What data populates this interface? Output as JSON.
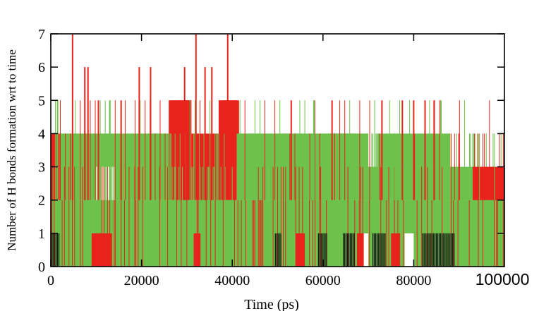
{
  "chart_data": {
    "type": "bar",
    "title": "",
    "xlabel": "Time (ps)",
    "ylabel": "Number of H bonds formation wrt to time",
    "xlim": [
      0,
      100000
    ],
    "ylim": [
      0,
      7
    ],
    "x_ticks": [
      "0",
      "20000",
      "40000",
      "60000",
      "80000"
    ],
    "x_tick_last": "100000",
    "y_ticks": [
      "0",
      "1",
      "2",
      "3",
      "4",
      "5",
      "6",
      "7"
    ],
    "grid": false,
    "legend": "none",
    "colors": {
      "red": "#e8231c",
      "green": "#6cc24a",
      "black": "#111111",
      "white": "#ffffff"
    },
    "segments": [
      {
        "x0": 0,
        "x1": 2000,
        "dominant": "red",
        "base": 3
      },
      {
        "x0": 2000,
        "x1": 10000,
        "dominant": "green",
        "base": 3
      },
      {
        "x0": 10000,
        "x1": 14000,
        "dominant": "red",
        "base": 0
      },
      {
        "x0": 14000,
        "x1": 26000,
        "dominant": "green",
        "base": 3
      },
      {
        "x0": 26000,
        "x1": 31000,
        "dominant": "red",
        "base": 4
      },
      {
        "x0": 31000,
        "x1": 37000,
        "dominant": "red",
        "base": 3
      },
      {
        "x0": 37000,
        "x1": 41000,
        "dominant": "red",
        "base": 4
      },
      {
        "x0": 41000,
        "x1": 48000,
        "dominant": "green",
        "base": 3
      },
      {
        "x0": 48000,
        "x1": 70000,
        "dominant": "green",
        "base": 3
      },
      {
        "x0": 70000,
        "x1": 88000,
        "dominant": "green",
        "base": 2
      },
      {
        "x0": 88000,
        "x1": 93000,
        "dominant": "green",
        "base": 2
      },
      {
        "x0": 93000,
        "x1": 100000,
        "dominant": "red",
        "base": 2
      }
    ],
    "spikes": [
      {
        "x": 4800,
        "y": 7,
        "color": "red"
      },
      {
        "x": 7500,
        "y": 6,
        "color": "red"
      },
      {
        "x": 8200,
        "y": 6,
        "color": "red"
      },
      {
        "x": 10500,
        "y": 5,
        "color": "red"
      },
      {
        "x": 15500,
        "y": 5,
        "color": "red"
      },
      {
        "x": 19500,
        "y": 6,
        "color": "red"
      },
      {
        "x": 22000,
        "y": 6,
        "color": "red"
      },
      {
        "x": 29500,
        "y": 6,
        "color": "red"
      },
      {
        "x": 32000,
        "y": 7,
        "color": "red"
      },
      {
        "x": 34000,
        "y": 6,
        "color": "red"
      },
      {
        "x": 35500,
        "y": 6,
        "color": "red"
      },
      {
        "x": 39000,
        "y": 7,
        "color": "red"
      },
      {
        "x": 53000,
        "y": 5,
        "color": "red"
      },
      {
        "x": 62000,
        "y": 5,
        "color": "red"
      },
      {
        "x": 73000,
        "y": 5,
        "color": "red"
      },
      {
        "x": 77500,
        "y": 5,
        "color": "red"
      },
      {
        "x": 80000,
        "y": 5,
        "color": "red"
      },
      {
        "x": 82500,
        "y": 5,
        "color": "red"
      },
      {
        "x": 84500,
        "y": 5,
        "color": "red"
      },
      {
        "x": 90000,
        "y": 4,
        "color": "red"
      },
      {
        "x": 1500,
        "y": 5,
        "color": "green"
      },
      {
        "x": 13000,
        "y": 5,
        "color": "green"
      },
      {
        "x": 58000,
        "y": 5,
        "color": "green"
      },
      {
        "x": 86000,
        "y": 5,
        "color": "green"
      }
    ],
    "black_bands": [
      {
        "x0": 0,
        "x1": 2000
      },
      {
        "x0": 49500,
        "x1": 51000
      },
      {
        "x0": 59000,
        "x1": 61000
      },
      {
        "x0": 64500,
        "x1": 67000
      },
      {
        "x0": 71000,
        "x1": 74000
      },
      {
        "x0": 82000,
        "x1": 89000
      }
    ],
    "white_bands": [
      {
        "x0": 78000,
        "x1": 80000
      },
      {
        "x0": 69000,
        "x1": 70000
      }
    ],
    "red_low_bands": [
      {
        "x0": 9000,
        "x1": 13500
      },
      {
        "x0": 31500,
        "x1": 33000
      },
      {
        "x0": 54000,
        "x1": 56000
      },
      {
        "x0": 67500,
        "x1": 69000
      },
      {
        "x0": 75000,
        "x1": 77000
      }
    ]
  }
}
